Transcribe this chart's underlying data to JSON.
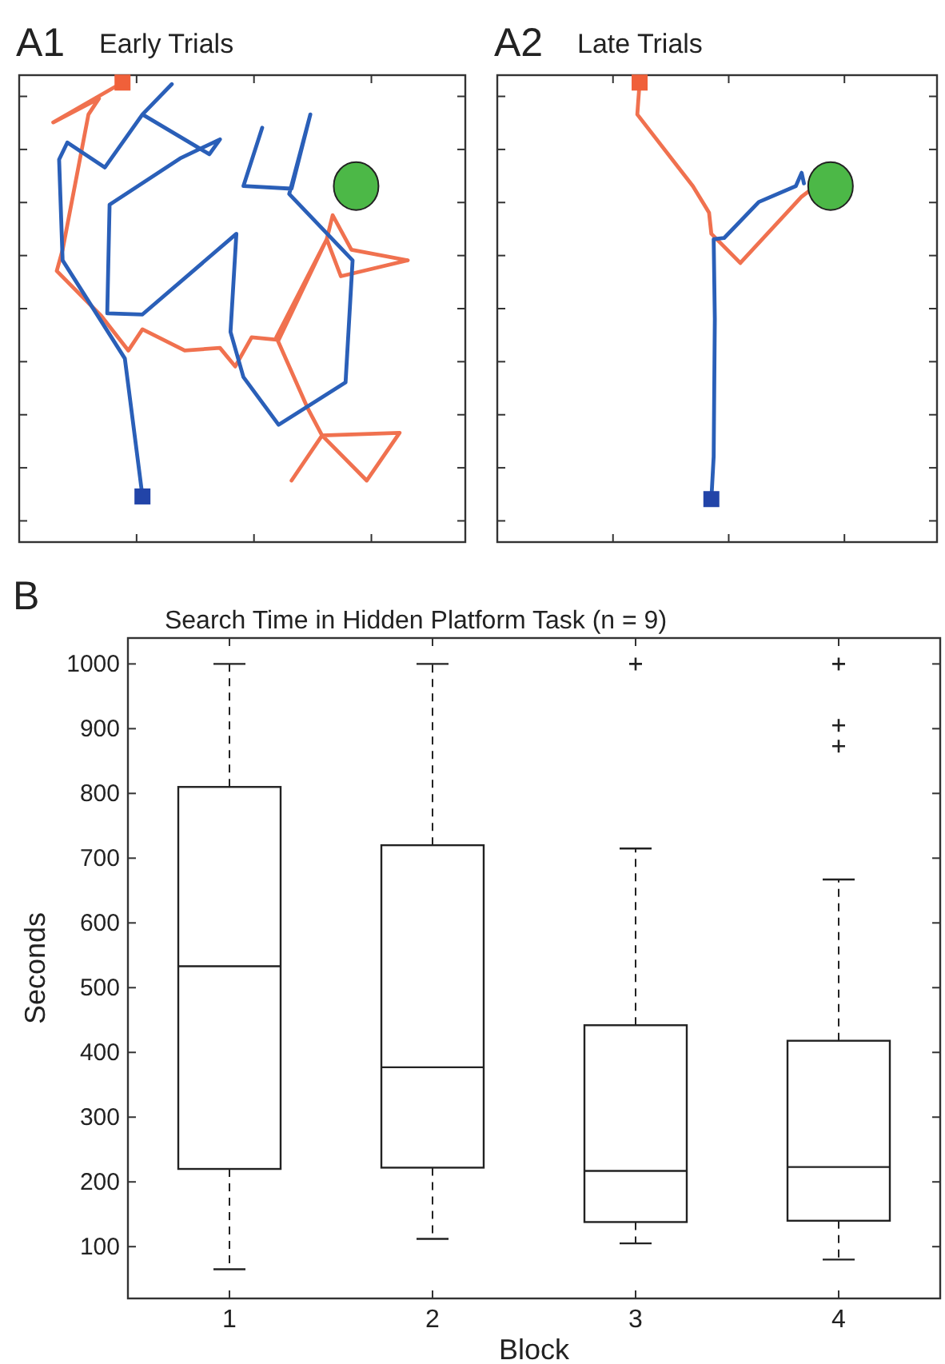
{
  "chart_data": [
    {
      "type": "other",
      "title": "Early Trials",
      "annotations": [
        "A1"
      ]
    },
    {
      "type": "other",
      "title": "Late Trials",
      "annotations": [
        "A2"
      ]
    },
    {
      "type": "box",
      "title": "Search Time in Hidden Platform Task (n = 9)",
      "annotations": [
        "B"
      ],
      "xlabel": "Block",
      "ylabel": "Seconds",
      "grid": false,
      "categories": [
        "1",
        "2",
        "3",
        "4"
      ],
      "ylim": [
        20,
        1040
      ],
      "yticks": [
        100,
        200,
        300,
        400,
        500,
        600,
        700,
        800,
        900,
        1000
      ],
      "boxes": [
        {
          "low": 65,
          "q1": 220,
          "median": 533,
          "q3": 810,
          "high": 1000
        },
        {
          "low": 112,
          "q1": 222,
          "median": 377,
          "q3": 720,
          "high": 1000
        },
        {
          "low": 105,
          "q1": 138,
          "median": 217,
          "q3": 442,
          "high": 715,
          "outliers": [
            1000
          ]
        },
        {
          "low": 80,
          "q1": 140,
          "median": 223,
          "q3": 418,
          "high": 667,
          "outliers": [
            1000,
            905,
            873
          ]
        }
      ]
    }
  ]
}
